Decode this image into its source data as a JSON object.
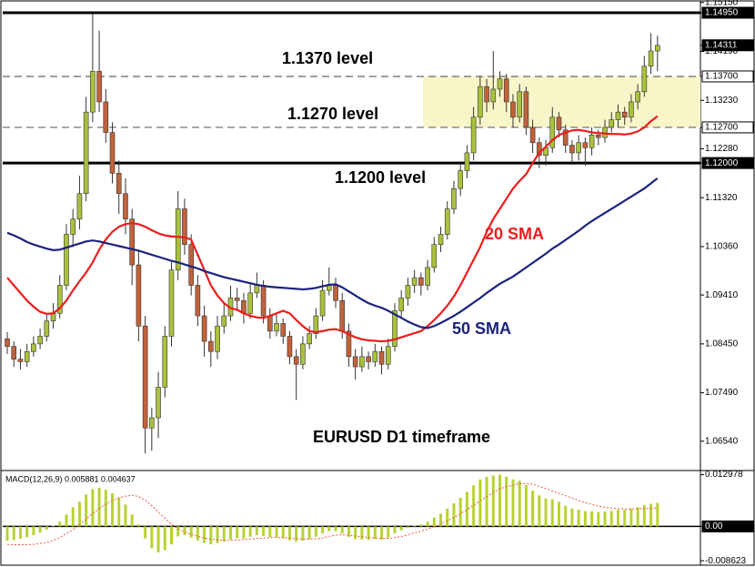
{
  "chart_data": [
    {
      "type": "candlestick",
      "annotations": [
        "1.1370 level",
        "1.1270 level",
        "1.1200 level",
        "EURUSD D1 timeframe"
      ],
      "up_color": "#a8c23c",
      "down_color": "#c1623a",
      "ylim": [
        1.06,
        1.152
      ],
      "yticks": [
        {
          "value": 1.1515,
          "label": "1.15150"
        },
        {
          "value": 1.1495,
          "label": "1.14950",
          "box": "dark"
        },
        {
          "value": 1.14311,
          "label": "1.14311",
          "box": "dark"
        },
        {
          "value": 1.1419,
          "label": "1.14190"
        },
        {
          "value": 1.137,
          "label": "1.13700",
          "box": "light"
        },
        {
          "value": 1.1323,
          "label": "1.13230"
        },
        {
          "value": 1.127,
          "label": "1.12700",
          "box": "light"
        },
        {
          "value": 1.1228,
          "label": "1.12280"
        },
        {
          "value": 1.12,
          "label": "1.12000",
          "box": "dark"
        },
        {
          "value": 1.1132,
          "label": "1.11320"
        },
        {
          "value": 1.1036,
          "label": "1.10360"
        },
        {
          "value": 1.0941,
          "label": "1.09410"
        },
        {
          "value": 1.0845,
          "label": "1.08450"
        },
        {
          "value": 1.0749,
          "label": "1.07490"
        },
        {
          "value": 1.0654,
          "label": "1.06540"
        }
      ],
      "hlines": [
        {
          "value": 1.1495,
          "style": "solid"
        },
        {
          "value": 1.137,
          "style": "dashed"
        },
        {
          "value": 1.127,
          "style": "dashed"
        },
        {
          "value": 1.12,
          "style": "solid"
        }
      ],
      "zone": [
        1.127,
        1.137
      ],
      "zone_color": "#f8f6c8",
      "ohlc": [
        [
          1.0855,
          1.0868,
          1.0825,
          1.084
        ],
        [
          1.084,
          1.085,
          1.08,
          1.0815
        ],
        [
          1.0815,
          1.0835,
          1.0795,
          1.081
        ],
        [
          1.081,
          1.0845,
          1.08,
          1.083
        ],
        [
          1.083,
          1.086,
          1.082,
          1.0845
        ],
        [
          1.0845,
          1.0875,
          1.0835,
          1.086
        ],
        [
          1.086,
          1.0905,
          1.085,
          1.089
        ],
        [
          1.089,
          1.0925,
          1.0875,
          1.0905
        ],
        [
          1.0905,
          1.098,
          1.0895,
          1.096
        ],
        [
          1.096,
          1.108,
          1.095,
          1.106
        ],
        [
          1.106,
          1.111,
          1.1035,
          1.109
        ],
        [
          1.109,
          1.1175,
          1.107,
          1.114
        ],
        [
          1.114,
          1.133,
          1.1125,
          1.13
        ],
        [
          1.13,
          1.1493,
          1.128,
          1.138
        ],
        [
          1.138,
          1.146,
          1.13,
          1.132
        ],
        [
          1.132,
          1.1345,
          1.124,
          1.126
        ],
        [
          1.126,
          1.128,
          1.116,
          1.118
        ],
        [
          1.118,
          1.1205,
          1.11,
          1.114
        ],
        [
          1.114,
          1.117,
          1.106,
          1.109
        ],
        [
          1.109,
          1.111,
          1.096,
          1.1
        ],
        [
          1.1,
          1.103,
          1.085,
          1.088
        ],
        [
          1.088,
          1.09,
          1.063,
          1.068
        ],
        [
          1.068,
          1.072,
          1.0635,
          1.07
        ],
        [
          1.07,
          1.079,
          1.066,
          1.076
        ],
        [
          1.076,
          1.088,
          1.074,
          1.086
        ],
        [
          1.086,
          1.101,
          1.084,
          1.099
        ],
        [
          1.099,
          1.1145,
          1.097,
          1.111
        ],
        [
          1.111,
          1.113,
          1.102,
          1.104
        ],
        [
          1.104,
          1.106,
          1.094,
          1.096
        ],
        [
          1.096,
          1.098,
          1.088,
          1.09
        ],
        [
          1.09,
          1.092,
          1.082,
          1.085
        ],
        [
          1.085,
          1.087,
          1.08,
          1.083
        ],
        [
          1.083,
          1.09,
          1.0815,
          1.088
        ],
        [
          1.088,
          1.0925,
          1.0865,
          1.09
        ],
        [
          1.09,
          1.096,
          1.089,
          1.0935
        ],
        [
          1.0935,
          1.0955,
          1.091,
          1.093
        ],
        [
          1.093,
          1.0945,
          1.0885,
          1.0905
        ],
        [
          1.0905,
          1.0965,
          1.0895,
          1.0945
        ],
        [
          1.0945,
          1.0985,
          1.0935,
          1.096
        ],
        [
          1.096,
          1.097,
          1.0885,
          1.09
        ],
        [
          1.09,
          1.0915,
          1.0855,
          1.087
        ],
        [
          1.087,
          1.0905,
          1.086,
          1.0885
        ],
        [
          1.0885,
          1.0895,
          1.0845,
          1.086
        ],
        [
          1.086,
          1.087,
          1.0805,
          1.082
        ],
        [
          1.082,
          1.0835,
          1.0735,
          1.0805
        ],
        [
          1.0805,
          1.086,
          1.0795,
          1.0845
        ],
        [
          1.0845,
          1.088,
          1.0835,
          1.0865
        ],
        [
          1.0865,
          1.0915,
          1.0855,
          1.09
        ],
        [
          1.09,
          1.097,
          1.089,
          1.095
        ],
        [
          1.095,
          1.0995,
          1.094,
          1.096
        ],
        [
          1.096,
          1.0975,
          1.0915,
          1.093
        ],
        [
          1.093,
          1.0945,
          1.0855,
          1.087
        ],
        [
          1.087,
          1.0885,
          1.08,
          1.082
        ],
        [
          1.082,
          1.0835,
          1.0775,
          1.08
        ],
        [
          1.08,
          1.084,
          1.079,
          1.082
        ],
        [
          1.082,
          1.083,
          1.0795,
          1.081
        ],
        [
          1.081,
          1.0845,
          1.08,
          1.083
        ],
        [
          1.083,
          1.084,
          1.0785,
          1.0805
        ],
        [
          1.0805,
          1.0855,
          1.0795,
          1.084
        ],
        [
          1.084,
          1.0925,
          1.083,
          1.091
        ],
        [
          1.091,
          1.095,
          1.0895,
          1.0935
        ],
        [
          1.0935,
          1.0975,
          1.092,
          1.096
        ],
        [
          1.096,
          1.099,
          1.0945,
          1.0975
        ],
        [
          1.0975,
          1.0985,
          1.094,
          1.096
        ],
        [
          1.096,
          1.101,
          1.095,
          1.0995
        ],
        [
          1.0995,
          1.1055,
          1.0985,
          1.104
        ],
        [
          1.104,
          1.1075,
          1.1025,
          1.106
        ],
        [
          1.106,
          1.1125,
          1.105,
          1.111
        ],
        [
          1.111,
          1.1165,
          1.11,
          1.115
        ],
        [
          1.115,
          1.12,
          1.1135,
          1.1185
        ],
        [
          1.1185,
          1.1235,
          1.117,
          1.122
        ],
        [
          1.122,
          1.131,
          1.1205,
          1.129
        ],
        [
          1.129,
          1.137,
          1.1275,
          1.135
        ],
        [
          1.135,
          1.1365,
          1.13,
          1.132
        ],
        [
          1.132,
          1.142,
          1.1305,
          1.1345
        ],
        [
          1.1345,
          1.138,
          1.133,
          1.1365
        ],
        [
          1.1365,
          1.1375,
          1.13,
          1.132
        ],
        [
          1.132,
          1.1335,
          1.127,
          1.129
        ],
        [
          1.129,
          1.1355,
          1.128,
          1.134
        ],
        [
          1.134,
          1.135,
          1.1255,
          1.127
        ],
        [
          1.127,
          1.1285,
          1.122,
          1.124
        ],
        [
          1.124,
          1.125,
          1.119,
          1.1215
        ],
        [
          1.1215,
          1.1245,
          1.1195,
          1.123
        ],
        [
          1.123,
          1.131,
          1.122,
          1.129
        ],
        [
          1.129,
          1.13,
          1.125,
          1.1265
        ],
        [
          1.1265,
          1.1275,
          1.122,
          1.1235
        ],
        [
          1.1235,
          1.1245,
          1.12,
          1.122
        ],
        [
          1.122,
          1.1255,
          1.1205,
          1.124
        ],
        [
          1.124,
          1.125,
          1.1195,
          1.123
        ],
        [
          1.123,
          1.127,
          1.1215,
          1.1255
        ],
        [
          1.1255,
          1.1265,
          1.1235,
          1.125
        ],
        [
          1.125,
          1.1285,
          1.124,
          1.127
        ],
        [
          1.127,
          1.13,
          1.126,
          1.1285
        ],
        [
          1.1285,
          1.1315,
          1.127,
          1.13
        ],
        [
          1.13,
          1.131,
          1.1275,
          1.129
        ],
        [
          1.129,
          1.1335,
          1.128,
          1.132
        ],
        [
          1.132,
          1.1355,
          1.1305,
          1.134
        ],
        [
          1.134,
          1.141,
          1.133,
          1.139
        ],
        [
          1.139,
          1.1455,
          1.1375,
          1.142
        ],
        [
          1.142,
          1.145,
          1.138,
          1.1431
        ]
      ],
      "series": [
        {
          "name": "20 SMA",
          "color": "#ee1c1c",
          "values": [
            1.0975,
            1.096,
            1.0945,
            1.093,
            1.0918,
            1.0908,
            1.0904,
            1.0905,
            1.0915,
            1.093,
            1.095,
            1.0968,
            1.0985,
            1.1005,
            1.103,
            1.105,
            1.1065,
            1.1075,
            1.108,
            1.1082,
            1.108,
            1.1075,
            1.1068,
            1.1062,
            1.1058,
            1.1056,
            1.1055,
            1.1054,
            1.105,
            1.102,
            1.099,
            1.096,
            1.094,
            1.0925,
            1.0915,
            1.0912,
            1.0905,
            1.09,
            1.0897,
            1.0896,
            1.09,
            1.0905,
            1.091,
            1.0905,
            1.0892,
            1.088,
            1.087,
            1.0868,
            1.087,
            1.0873,
            1.0874,
            1.087,
            1.0864,
            1.0858,
            1.0854,
            1.0852,
            1.0851,
            1.085,
            1.0851,
            1.0854,
            1.0858,
            1.0862,
            1.0866,
            1.087,
            1.088,
            1.0892,
            1.0905,
            1.092,
            1.0938,
            1.096,
            1.0985,
            1.101,
            1.1035,
            1.1065,
            1.109,
            1.111,
            1.113,
            1.115,
            1.1165,
            1.1178,
            1.12,
            1.122,
            1.1232,
            1.1245,
            1.1255,
            1.126,
            1.1264,
            1.1265,
            1.1263,
            1.126,
            1.1259,
            1.1258,
            1.1257,
            1.1257,
            1.1256,
            1.1258,
            1.1262,
            1.127,
            1.1282,
            1.1292
          ]
        },
        {
          "name": "50 SMA",
          "color": "#1a237e",
          "values": [
            1.1063,
            1.1058,
            1.1052,
            1.1045,
            1.104,
            1.1036,
            1.1032,
            1.1029,
            1.103,
            1.1034,
            1.1038,
            1.1042,
            1.1046,
            1.1048,
            1.1046,
            1.1043,
            1.104,
            1.1037,
            1.1034,
            1.1031,
            1.1028,
            1.1024,
            1.102,
            1.1016,
            1.1012,
            1.1008,
            1.1005,
            1.1001,
            1.0997,
            1.0993,
            1.0988,
            1.0984,
            1.098,
            1.0976,
            1.0973,
            1.097,
            1.0967,
            1.0964,
            1.0961,
            1.0959,
            1.0957,
            1.0956,
            1.0955,
            1.0954,
            1.0953,
            1.0952,
            1.0953,
            1.0955,
            1.0958,
            1.0961,
            1.0962,
            1.0956,
            1.0948,
            1.094,
            1.0932,
            1.0925,
            1.092,
            1.0916,
            1.091,
            1.0903,
            1.0896,
            1.0889,
            1.0883,
            1.0878,
            1.0876,
            1.088,
            1.0886,
            1.0893,
            1.09,
            1.0908,
            1.0917,
            1.0926,
            1.0935,
            1.0945,
            1.0954,
            1.0963,
            1.097,
            1.0977,
            1.0986,
            1.0995,
            1.1004,
            1.1013,
            1.1022,
            1.1032,
            1.104,
            1.1049,
            1.1058,
            1.1067,
            1.1077,
            1.1086,
            1.1094,
            1.1102,
            1.111,
            1.1118,
            1.1126,
            1.1134,
            1.1142,
            1.115,
            1.116,
            1.117
          ]
        }
      ]
    },
    {
      "type": "bar",
      "label": "MACD(12,26,9) 0.005881 0.004637",
      "ylim": [
        -0.0095,
        0.0138
      ],
      "yticks": [
        0.012978,
        {
          "value": 0,
          "label": "0.00",
          "box": "dark"
        },
        -0.008623
      ],
      "series": [
        {
          "color": "#b5d334",
          "style": "bars",
          "values": [
            -0.0036,
            -0.0034,
            -0.0031,
            -0.0027,
            -0.0022,
            -0.0016,
            -0.0008,
            0.0002,
            0.0012,
            0.003,
            0.0048,
            0.0062,
            0.008,
            0.0094,
            0.0097,
            0.0092,
            0.0083,
            0.0071,
            0.0055,
            0.003,
            0.0005,
            -0.003,
            -0.0055,
            -0.0065,
            -0.006,
            -0.0045,
            -0.0025,
            -0.0022,
            -0.0028,
            -0.0035,
            -0.0042,
            -0.0045,
            -0.0042,
            -0.0038,
            -0.0033,
            -0.003,
            -0.003,
            -0.0026,
            -0.0022,
            -0.0024,
            -0.0027,
            -0.0027,
            -0.003,
            -0.0035,
            -0.0038,
            -0.0036,
            -0.0032,
            -0.0026,
            -0.0018,
            -0.0012,
            -0.0012,
            -0.0018,
            -0.0026,
            -0.0032,
            -0.0033,
            -0.0034,
            -0.0032,
            -0.0033,
            -0.0028,
            -0.0018,
            -0.001,
            -0.0004,
            0.0002,
            0.0005,
            0.0012,
            0.0022,
            0.0032,
            0.0045,
            0.0058,
            0.0072,
            0.0087,
            0.0103,
            0.0118,
            0.0124,
            0.0128,
            0.013,
            0.0125,
            0.0118,
            0.0115,
            0.0104,
            0.009,
            0.0078,
            0.007,
            0.0068,
            0.0062,
            0.0052,
            0.0045,
            0.0042,
            0.0038,
            0.0038,
            0.0036,
            0.0037,
            0.0039,
            0.0042,
            0.0042,
            0.0045,
            0.0048,
            0.0053,
            0.0057,
            0.005881
          ]
        },
        {
          "color": "#f05a3c",
          "style": "dotted",
          "values": [
            -0.0045,
            -0.0046,
            -0.0046,
            -0.0046,
            -0.0045,
            -0.0043,
            -0.004,
            -0.0035,
            -0.0028,
            -0.0018,
            -0.0008,
            0.0004,
            0.0018,
            0.0032,
            0.0045,
            0.0056,
            0.0065,
            0.0072,
            0.0076,
            0.0078,
            0.0075,
            0.0066,
            0.0052,
            0.0036,
            0.002,
            0.0006,
            -0.0006,
            -0.0014,
            -0.002,
            -0.0025,
            -0.0029,
            -0.0032,
            -0.0034,
            -0.0035,
            -0.0035,
            -0.0034,
            -0.0033,
            -0.0032,
            -0.003,
            -0.0029,
            -0.0028,
            -0.0028,
            -0.0028,
            -0.0029,
            -0.0031,
            -0.0032,
            -0.0032,
            -0.0031,
            -0.0029,
            -0.0025,
            -0.0022,
            -0.0021,
            -0.0022,
            -0.0024,
            -0.0026,
            -0.0028,
            -0.0029,
            -0.003,
            -0.003,
            -0.0028,
            -0.0025,
            -0.0021,
            -0.0016,
            -0.0012,
            -0.0007,
            -0.0001,
            0.0006,
            0.0014,
            0.0022,
            0.0032,
            0.0042,
            0.0053,
            0.0064,
            0.0075,
            0.0085,
            0.0094,
            0.01,
            0.0104,
            0.0107,
            0.0108,
            0.0106,
            0.0101,
            0.0095,
            0.0089,
            0.0083,
            0.0077,
            0.0071,
            0.0065,
            0.006,
            0.0055,
            0.0051,
            0.0048,
            0.0046,
            0.0045,
            0.0044,
            0.0044,
            0.0044,
            0.0045,
            0.0045,
            0.004637
          ]
        }
      ]
    }
  ]
}
